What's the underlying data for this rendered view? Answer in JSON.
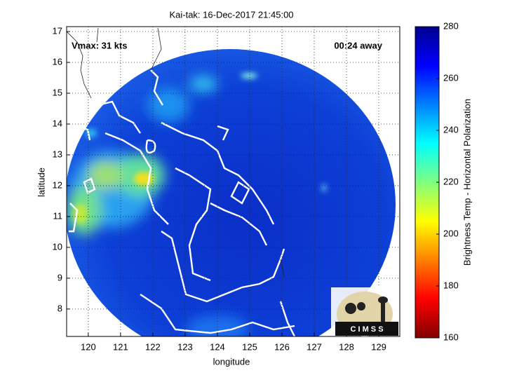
{
  "chart_data": {
    "type": "map",
    "title": "Kai-tak: 16-Dec-2017 21:45:00",
    "annotations": [
      "Vmax: 31 kts",
      "00:24 away"
    ],
    "xlabel": "longitude",
    "ylabel": "latitude",
    "xlim": [
      119.33,
      129.65
    ],
    "ylim": [
      7.11,
      17.16
    ],
    "xticks": [
      120,
      121,
      122,
      123,
      124,
      125,
      126,
      127,
      128,
      129
    ],
    "yticks": [
      8,
      9,
      10,
      11,
      12,
      13,
      14,
      15,
      16,
      17
    ],
    "grid": true,
    "colorbar": {
      "label": "Brightness Temp - Horizontal Polarization",
      "lim": [
        160,
        280
      ],
      "ticks": [
        160,
        180,
        200,
        220,
        240,
        260,
        280
      ],
      "colormap": "jet"
    },
    "logo_text": "C I M S S"
  }
}
